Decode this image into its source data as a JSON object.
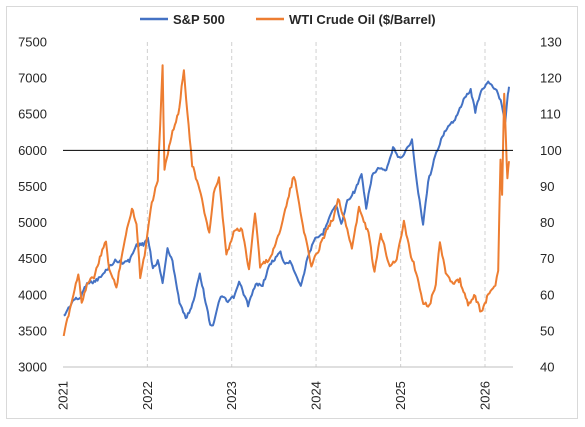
{
  "chart_data": {
    "type": "line",
    "title": "",
    "legend_position": "top",
    "grid": "vertical dashed lines at each year",
    "x_axis": {
      "type": "date",
      "ticks": [
        "2021",
        "2022",
        "2023",
        "2024",
        "2025",
        "2026"
      ],
      "range": [
        "2021-01-01",
        "2026-04-15"
      ]
    },
    "y_left": {
      "range": [
        3000,
        7500
      ],
      "ticks": [
        "3000",
        "3500",
        "4000",
        "4500",
        "5000",
        "5500",
        "6000",
        "6500",
        "7000",
        "7500"
      ]
    },
    "y_right": {
      "range": [
        40,
        130
      ],
      "ticks": [
        "40",
        "50",
        "60",
        "70",
        "80",
        "90",
        "100",
        "110",
        "120",
        "130"
      ]
    },
    "reference_line": {
      "axis": "right",
      "value": 100,
      "color": "#000000"
    },
    "series": [
      {
        "name": "S&P 500",
        "axis": "left",
        "color": "#4472C4",
        "points": [
          [
            "2021-01-04",
            3700
          ],
          [
            "2021-02-15",
            3930
          ],
          [
            "2021-03-15",
            3950
          ],
          [
            "2021-04-15",
            4170
          ],
          [
            "2021-05-15",
            4180
          ],
          [
            "2021-06-15",
            4250
          ],
          [
            "2021-07-15",
            4370
          ],
          [
            "2021-08-15",
            4470
          ],
          [
            "2021-09-15",
            4450
          ],
          [
            "2021-10-15",
            4470
          ],
          [
            "2021-11-15",
            4690
          ],
          [
            "2021-12-15",
            4700
          ],
          [
            "2022-01-03",
            4790
          ],
          [
            "2022-01-25",
            4360
          ],
          [
            "2022-02-15",
            4470
          ],
          [
            "2022-03-08",
            4170
          ],
          [
            "2022-03-29",
            4630
          ],
          [
            "2022-04-20",
            4460
          ],
          [
            "2022-05-20",
            3900
          ],
          [
            "2022-06-16",
            3670
          ],
          [
            "2022-07-15",
            3860
          ],
          [
            "2022-08-16",
            4300
          ],
          [
            "2022-09-30",
            3590
          ],
          [
            "2022-10-12",
            3580
          ],
          [
            "2022-11-15",
            3990
          ],
          [
            "2022-12-15",
            3900
          ],
          [
            "2023-01-15",
            3990
          ],
          [
            "2023-02-02",
            4180
          ],
          [
            "2023-03-13",
            3860
          ],
          [
            "2023-04-15",
            4140
          ],
          [
            "2023-05-15",
            4140
          ],
          [
            "2023-06-15",
            4420
          ],
          [
            "2023-07-31",
            4590
          ],
          [
            "2023-08-15",
            4440
          ],
          [
            "2023-09-15",
            4450
          ],
          [
            "2023-10-27",
            4120
          ],
          [
            "2023-11-30",
            4570
          ],
          [
            "2023-12-29",
            4770
          ],
          [
            "2024-01-31",
            4850
          ],
          [
            "2024-02-29",
            5100
          ],
          [
            "2024-03-28",
            5250
          ],
          [
            "2024-04-19",
            4970
          ],
          [
            "2024-05-15",
            5300
          ],
          [
            "2024-06-15",
            5430
          ],
          [
            "2024-07-16",
            5660
          ],
          [
            "2024-08-05",
            5190
          ],
          [
            "2024-08-30",
            5650
          ],
          [
            "2024-09-30",
            5760
          ],
          [
            "2024-10-31",
            5710
          ],
          [
            "2024-11-29",
            6030
          ],
          [
            "2024-12-31",
            5880
          ],
          [
            "2025-01-31",
            6040
          ],
          [
            "2025-02-19",
            6140
          ],
          [
            "2025-03-13",
            5520
          ],
          [
            "2025-04-08",
            4980
          ],
          [
            "2025-04-30",
            5570
          ],
          [
            "2025-05-30",
            5910
          ],
          [
            "2025-06-30",
            6200
          ],
          [
            "2025-07-31",
            6340
          ],
          [
            "2025-08-29",
            6460
          ],
          [
            "2025-09-30",
            6690
          ],
          [
            "2025-10-31",
            6840
          ],
          [
            "2025-11-20",
            6540
          ],
          [
            "2025-12-15",
            6830
          ],
          [
            "2026-01-15",
            6940
          ],
          [
            "2026-02-15",
            6850
          ],
          [
            "2026-03-10",
            6700
          ],
          [
            "2026-03-30",
            6400
          ],
          [
            "2026-04-10",
            6800
          ],
          [
            "2026-04-15",
            6880
          ]
        ]
      },
      {
        "name": "WTI Crude Oil ($/Barrel)",
        "axis": "right",
        "color": "#ED7D31",
        "points": [
          [
            "2021-01-04",
            48
          ],
          [
            "2021-01-15",
            52
          ],
          [
            "2021-02-15",
            60
          ],
          [
            "2021-03-08",
            66
          ],
          [
            "2021-03-23",
            58
          ],
          [
            "2021-04-15",
            63
          ],
          [
            "2021-05-15",
            65
          ],
          [
            "2021-06-15",
            71
          ],
          [
            "2021-07-06",
            75
          ],
          [
            "2021-07-20",
            67
          ],
          [
            "2021-08-20",
            62
          ],
          [
            "2021-09-15",
            72
          ],
          [
            "2021-10-26",
            84
          ],
          [
            "2021-11-15",
            80
          ],
          [
            "2021-12-01",
            65
          ],
          [
            "2021-12-20",
            71
          ],
          [
            "2022-01-15",
            84
          ],
          [
            "2022-02-15",
            92
          ],
          [
            "2022-03-08",
            123
          ],
          [
            "2022-03-16",
            95
          ],
          [
            "2022-04-15",
            104
          ],
          [
            "2022-05-15",
            110
          ],
          [
            "2022-06-08",
            122
          ],
          [
            "2022-07-14",
            96
          ],
          [
            "2022-08-15",
            89
          ],
          [
            "2022-09-26",
            77
          ],
          [
            "2022-10-15",
            88
          ],
          [
            "2022-11-07",
            92
          ],
          [
            "2022-12-09",
            71
          ],
          [
            "2023-01-15",
            78
          ],
          [
            "2023-02-15",
            78
          ],
          [
            "2023-03-17",
            67
          ],
          [
            "2023-04-12",
            83
          ],
          [
            "2023-05-04",
            68
          ],
          [
            "2023-06-15",
            70
          ],
          [
            "2023-07-15",
            75
          ],
          [
            "2023-08-15",
            82
          ],
          [
            "2023-09-27",
            93
          ],
          [
            "2023-10-15",
            87
          ],
          [
            "2023-11-15",
            76
          ],
          [
            "2023-12-12",
            68
          ],
          [
            "2024-01-15",
            73
          ],
          [
            "2024-02-15",
            78
          ],
          [
            "2024-03-15",
            81
          ],
          [
            "2024-04-05",
            87
          ],
          [
            "2024-05-15",
            78
          ],
          [
            "2024-06-04",
            73
          ],
          [
            "2024-07-05",
            84
          ],
          [
            "2024-08-15",
            77
          ],
          [
            "2024-09-10",
            66
          ],
          [
            "2024-10-07",
            77
          ],
          [
            "2024-11-15",
            68
          ],
          [
            "2024-12-15",
            70
          ],
          [
            "2025-01-15",
            80
          ],
          [
            "2025-02-15",
            71
          ],
          [
            "2025-03-10",
            66
          ],
          [
            "2025-04-09",
            58
          ],
          [
            "2025-05-05",
            57
          ],
          [
            "2025-06-02",
            63
          ],
          [
            "2025-06-20",
            75
          ],
          [
            "2025-07-15",
            66
          ],
          [
            "2025-08-15",
            63
          ],
          [
            "2025-09-15",
            64
          ],
          [
            "2025-10-20",
            57
          ],
          [
            "2025-11-15",
            60
          ],
          [
            "2025-12-16",
            55
          ],
          [
            "2026-01-15",
            60
          ],
          [
            "2026-02-15",
            63
          ],
          [
            "2026-02-27",
            67
          ],
          [
            "2026-03-09",
            98
          ],
          [
            "2026-03-16",
            88
          ],
          [
            "2026-03-25",
            116
          ],
          [
            "2026-04-02",
            102
          ],
          [
            "2026-04-08",
            92
          ],
          [
            "2026-04-15",
            97
          ]
        ]
      }
    ]
  }
}
